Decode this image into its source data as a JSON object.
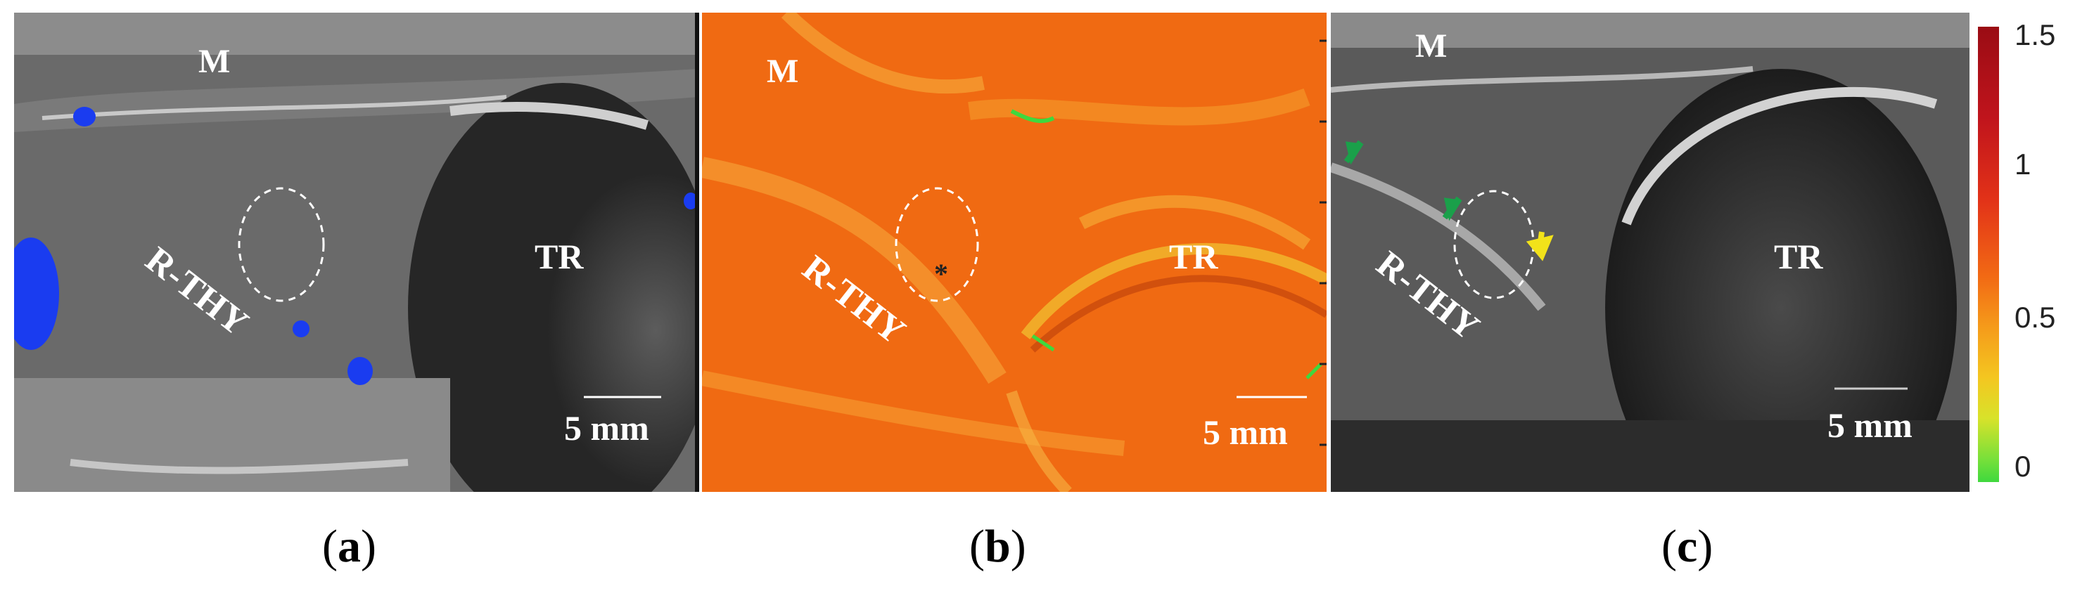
{
  "panels": {
    "a": {
      "label_m": "M",
      "label_thy": "R-THY",
      "label_tr": "TR",
      "scale": "5 mm",
      "caption_open": "(",
      "caption_letter": "a",
      "caption_close": ")"
    },
    "b": {
      "label_m": "M",
      "label_thy": "R-THY",
      "label_tr": "TR",
      "scale": "5 mm",
      "marker": "*",
      "caption_open": "(",
      "caption_letter": "b",
      "caption_close": ")"
    },
    "c": {
      "label_m": "M",
      "label_thy": "R-THY",
      "label_tr": "TR",
      "scale": "5 mm",
      "caption_open": "(",
      "caption_letter": "c",
      "caption_close": ")"
    }
  },
  "colorbar": {
    "ticks": [
      "1.5",
      "1",
      "0.5",
      "0"
    ],
    "colors": [
      "#9a0c14",
      "#e23218",
      "#f26a14",
      "#f4c620",
      "#3fd83e"
    ]
  },
  "colors": {
    "doppler_blue": "#1a3cf0",
    "green_arrow": "#1aa04a",
    "yellow_arrow": "#f2e21a"
  }
}
